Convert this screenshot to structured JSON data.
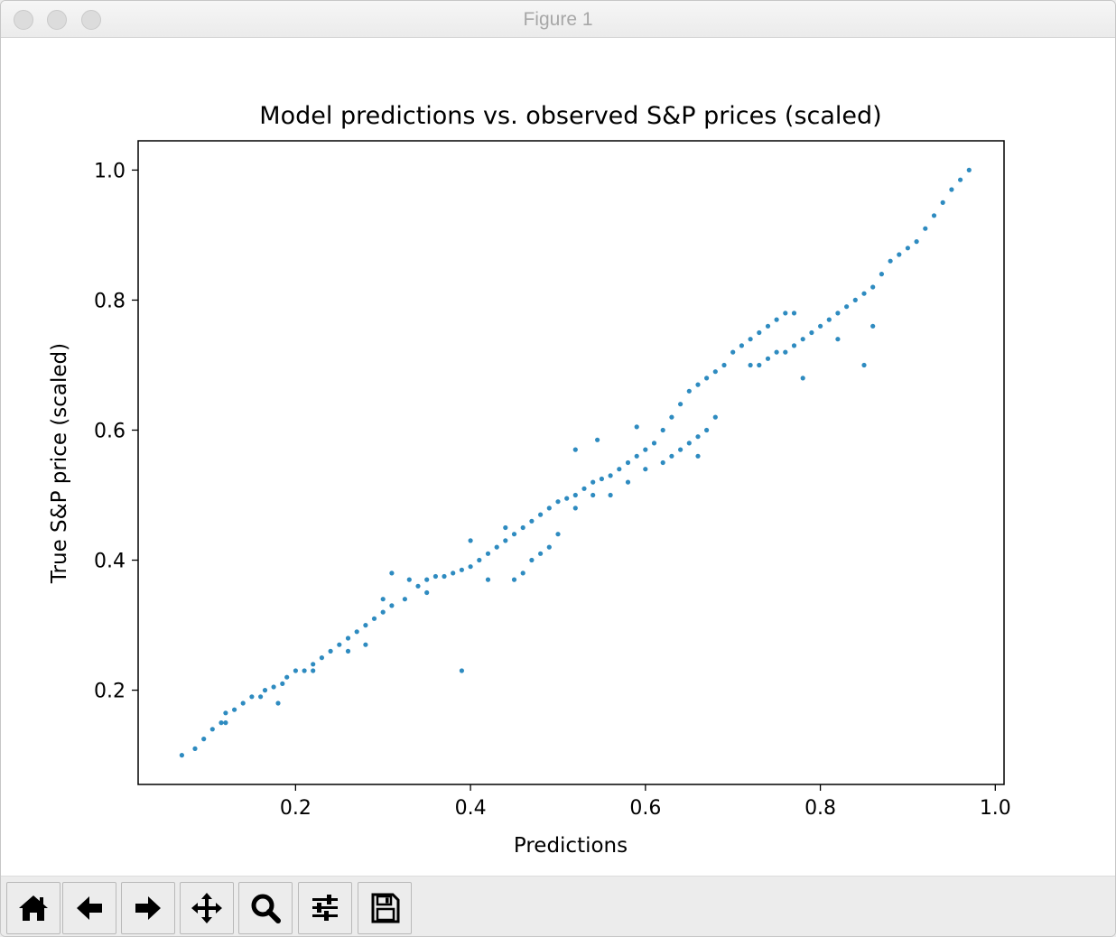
{
  "window": {
    "title": "Figure 1"
  },
  "toolbar": {
    "buttons": [
      {
        "name": "home-button",
        "icon": "home-icon"
      },
      {
        "name": "back-button",
        "icon": "arrow-left-icon"
      },
      {
        "name": "forward-button",
        "icon": "arrow-right-icon"
      },
      {
        "name": "pan-button",
        "icon": "move-icon"
      },
      {
        "name": "zoom-button",
        "icon": "magnifier-icon"
      },
      {
        "name": "configure-subplots-button",
        "icon": "sliders-icon"
      },
      {
        "name": "save-button",
        "icon": "floppy-disk-icon"
      }
    ]
  },
  "chart_data": {
    "type": "scatter",
    "title": "Model predictions vs. observed S&P prices (scaled)",
    "xlabel": "Predictions",
    "ylabel": "True S&P price (scaled)",
    "xlim": [
      0.02,
      1.01
    ],
    "ylim": [
      0.055,
      1.045
    ],
    "xticks": [
      0.2,
      0.4,
      0.6,
      0.8,
      1.0
    ],
    "yticks": [
      0.2,
      0.4,
      0.6,
      0.8,
      1.0
    ],
    "xtick_labels": [
      "0.2",
      "0.4",
      "0.6",
      "0.8",
      "1.0"
    ],
    "ytick_labels": [
      "0.2",
      "0.4",
      "0.6",
      "0.8",
      "1.0"
    ],
    "grid": false,
    "color": "#2e8bc0",
    "series": [
      {
        "points": [
          [
            0.07,
            0.1
          ],
          [
            0.085,
            0.11
          ],
          [
            0.095,
            0.125
          ],
          [
            0.105,
            0.14
          ],
          [
            0.115,
            0.15
          ],
          [
            0.12,
            0.165
          ],
          [
            0.13,
            0.17
          ],
          [
            0.14,
            0.18
          ],
          [
            0.15,
            0.19
          ],
          [
            0.16,
            0.19
          ],
          [
            0.165,
            0.2
          ],
          [
            0.175,
            0.205
          ],
          [
            0.185,
            0.21
          ],
          [
            0.19,
            0.22
          ],
          [
            0.2,
            0.23
          ],
          [
            0.21,
            0.23
          ],
          [
            0.22,
            0.24
          ],
          [
            0.23,
            0.25
          ],
          [
            0.24,
            0.26
          ],
          [
            0.25,
            0.27
          ],
          [
            0.26,
            0.28
          ],
          [
            0.27,
            0.29
          ],
          [
            0.28,
            0.3
          ],
          [
            0.29,
            0.31
          ],
          [
            0.3,
            0.32
          ],
          [
            0.31,
            0.33
          ],
          [
            0.325,
            0.34
          ],
          [
            0.34,
            0.36
          ],
          [
            0.35,
            0.37
          ],
          [
            0.36,
            0.375
          ],
          [
            0.37,
            0.375
          ],
          [
            0.38,
            0.38
          ],
          [
            0.39,
            0.385
          ],
          [
            0.4,
            0.39
          ],
          [
            0.41,
            0.4
          ],
          [
            0.42,
            0.41
          ],
          [
            0.43,
            0.42
          ],
          [
            0.44,
            0.43
          ],
          [
            0.45,
            0.44
          ],
          [
            0.46,
            0.45
          ],
          [
            0.47,
            0.46
          ],
          [
            0.48,
            0.47
          ],
          [
            0.49,
            0.48
          ],
          [
            0.5,
            0.49
          ],
          [
            0.51,
            0.495
          ],
          [
            0.52,
            0.5
          ],
          [
            0.53,
            0.51
          ],
          [
            0.54,
            0.52
          ],
          [
            0.55,
            0.525
          ],
          [
            0.56,
            0.53
          ],
          [
            0.57,
            0.54
          ],
          [
            0.58,
            0.55
          ],
          [
            0.59,
            0.56
          ],
          [
            0.6,
            0.57
          ],
          [
            0.61,
            0.58
          ],
          [
            0.62,
            0.6
          ],
          [
            0.63,
            0.62
          ],
          [
            0.64,
            0.64
          ],
          [
            0.65,
            0.66
          ],
          [
            0.66,
            0.67
          ],
          [
            0.67,
            0.68
          ],
          [
            0.68,
            0.69
          ],
          [
            0.69,
            0.7
          ],
          [
            0.7,
            0.72
          ],
          [
            0.71,
            0.73
          ],
          [
            0.72,
            0.74
          ],
          [
            0.73,
            0.75
          ],
          [
            0.74,
            0.76
          ],
          [
            0.75,
            0.77
          ],
          [
            0.76,
            0.78
          ],
          [
            0.77,
            0.78
          ],
          [
            0.72,
            0.7
          ],
          [
            0.73,
            0.7
          ],
          [
            0.74,
            0.71
          ],
          [
            0.75,
            0.72
          ],
          [
            0.76,
            0.72
          ],
          [
            0.77,
            0.73
          ],
          [
            0.78,
            0.74
          ],
          [
            0.79,
            0.75
          ],
          [
            0.8,
            0.76
          ],
          [
            0.81,
            0.77
          ],
          [
            0.82,
            0.78
          ],
          [
            0.83,
            0.79
          ],
          [
            0.84,
            0.8
          ],
          [
            0.85,
            0.81
          ],
          [
            0.86,
            0.82
          ],
          [
            0.87,
            0.84
          ],
          [
            0.88,
            0.86
          ],
          [
            0.89,
            0.87
          ],
          [
            0.9,
            0.88
          ],
          [
            0.91,
            0.89
          ],
          [
            0.92,
            0.91
          ],
          [
            0.93,
            0.93
          ],
          [
            0.94,
            0.95
          ],
          [
            0.95,
            0.97
          ],
          [
            0.96,
            0.985
          ],
          [
            0.97,
            1.0
          ],
          [
            0.62,
            0.55
          ],
          [
            0.63,
            0.56
          ],
          [
            0.64,
            0.57
          ],
          [
            0.65,
            0.58
          ],
          [
            0.66,
            0.59
          ],
          [
            0.67,
            0.6
          ],
          [
            0.68,
            0.62
          ],
          [
            0.45,
            0.37
          ],
          [
            0.46,
            0.38
          ],
          [
            0.47,
            0.4
          ],
          [
            0.48,
            0.41
          ],
          [
            0.49,
            0.42
          ],
          [
            0.52,
            0.48
          ],
          [
            0.54,
            0.5
          ],
          [
            0.56,
            0.5
          ],
          [
            0.58,
            0.52
          ],
          [
            0.6,
            0.54
          ],
          [
            0.545,
            0.585
          ],
          [
            0.59,
            0.605
          ],
          [
            0.66,
            0.56
          ],
          [
            0.82,
            0.74
          ],
          [
            0.86,
            0.76
          ],
          [
            0.78,
            0.68
          ],
          [
            0.39,
            0.23
          ],
          [
            0.31,
            0.38
          ],
          [
            0.52,
            0.57
          ],
          [
            0.85,
            0.7
          ],
          [
            0.4,
            0.43
          ],
          [
            0.42,
            0.37
          ],
          [
            0.44,
            0.45
          ],
          [
            0.5,
            0.44
          ],
          [
            0.33,
            0.37
          ],
          [
            0.35,
            0.35
          ],
          [
            0.12,
            0.15
          ],
          [
            0.18,
            0.18
          ],
          [
            0.26,
            0.26
          ],
          [
            0.28,
            0.27
          ],
          [
            0.3,
            0.34
          ],
          [
            0.22,
            0.23
          ]
        ]
      }
    ]
  }
}
